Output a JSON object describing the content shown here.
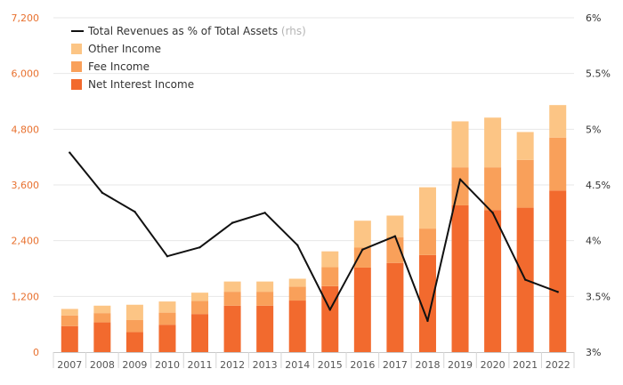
{
  "chart_data": {
    "type": "bar",
    "stacked": true,
    "categories": [
      "2007",
      "2008",
      "2009",
      "2010",
      "2011",
      "2012",
      "2013",
      "2014",
      "2015",
      "2016",
      "2017",
      "2018",
      "2019",
      "2020",
      "2021",
      "2022"
    ],
    "series": [
      {
        "name": "Net Interest Income",
        "color": "#f26a2e",
        "values": [
          560,
          640,
          430,
          590,
          820,
          1000,
          1000,
          1110,
          1420,
          1820,
          1920,
          2090,
          3160,
          3060,
          3110,
          3480
        ]
      },
      {
        "name": "Fee Income",
        "color": "#f9a05a",
        "values": [
          230,
          200,
          260,
          260,
          280,
          300,
          300,
          300,
          410,
          430,
          550,
          570,
          820,
          920,
          1030,
          1140
        ]
      },
      {
        "name": "Other Income",
        "color": "#fcc585",
        "values": [
          140,
          160,
          330,
          240,
          180,
          220,
          220,
          170,
          340,
          580,
          470,
          890,
          990,
          1070,
          600,
          700
        ]
      }
    ],
    "line_series": {
      "name": "Total Revenues as % of Total Assets",
      "name_suffix": "(rhs)",
      "color": "#111111",
      "values": [
        4.79,
        4.43,
        4.26,
        3.86,
        3.94,
        4.16,
        4.25,
        3.96,
        3.38,
        3.92,
        4.04,
        3.28,
        4.55,
        4.25,
        3.65,
        3.54
      ]
    },
    "y_left": {
      "ylim": [
        0,
        7200
      ],
      "ticks": [
        0,
        1200,
        2400,
        3600,
        4800,
        6000,
        7200
      ],
      "labels": [
        "0",
        "1,200",
        "2,400",
        "3,600",
        "4,800",
        "6,000",
        "7,200"
      ],
      "color": "#e8712f"
    },
    "y_right": {
      "ylim": [
        3,
        6
      ],
      "ticks": [
        3,
        3.5,
        4,
        4.5,
        5,
        5.5,
        6
      ],
      "labels": [
        "3%",
        "3.5%",
        "4%",
        "4.5%",
        "5%",
        "5.5%",
        "6%"
      ]
    },
    "grid": true,
    "legend_position": "top-left"
  }
}
